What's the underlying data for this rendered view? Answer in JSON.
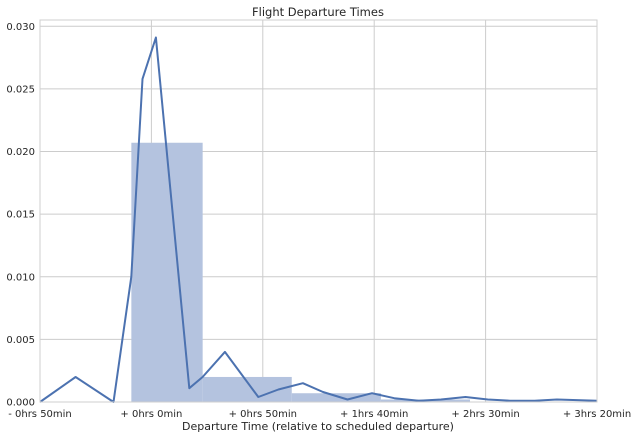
{
  "chart_data": {
    "type": "bar",
    "title": "Flight Departure Times",
    "xlabel": "Departure Time (relative to scheduled departure)",
    "ylabel": "",
    "grid": true,
    "xlim": [
      -50,
      200
    ],
    "ylim": [
      0,
      0.0305
    ],
    "xticks": [
      {
        "value": -50,
        "label": "- 0hrs 50min"
      },
      {
        "value": 0,
        "label": "+ 0hrs  0min"
      },
      {
        "value": 50,
        "label": "+ 0hrs 50min"
      },
      {
        "value": 100,
        "label": "+ 1hrs 40min"
      },
      {
        "value": 150,
        "label": "+ 2hrs 30min"
      },
      {
        "value": 200,
        "label": "+ 3hrs 20min"
      }
    ],
    "yticks": [
      {
        "value": 0,
        "label": "0.000"
      },
      {
        "value": 0.005,
        "label": "0.005"
      },
      {
        "value": 0.01,
        "label": "0.010"
      },
      {
        "value": 0.015,
        "label": "0.015"
      },
      {
        "value": 0.02,
        "label": "0.020"
      },
      {
        "value": 0.025,
        "label": "0.025"
      },
      {
        "value": 0.03,
        "label": "0.030"
      }
    ],
    "histogram": {
      "color": "#b4c3df",
      "bins": [
        {
          "x0": -50,
          "x1": -9,
          "value": 0.0
        },
        {
          "x0": -9,
          "x1": 23,
          "value": 0.0207
        },
        {
          "x0": 23,
          "x1": 63,
          "value": 0.002
        },
        {
          "x0": 63,
          "x1": 103,
          "value": 0.0007
        },
        {
          "x0": 103,
          "x1": 143,
          "value": 0.0002
        },
        {
          "x0": 143,
          "x1": 200,
          "value": 0.0
        }
      ]
    },
    "kde": {
      "color": "#4c72b0",
      "x": [
        -50,
        -34,
        -17,
        -9,
        -4,
        2,
        17,
        23,
        33,
        48,
        57,
        68,
        77,
        88,
        99,
        109,
        120,
        130,
        141,
        151,
        161,
        172,
        182,
        200
      ],
      "y": [
        0.0,
        0.002,
        0.0,
        0.01,
        0.0258,
        0.0291,
        0.0011,
        0.002,
        0.004,
        0.0004,
        0.001,
        0.0015,
        0.0008,
        0.0002,
        0.0007,
        0.0003,
        0.0001,
        0.0002,
        0.0004,
        0.0002,
        0.0001,
        0.0001,
        0.0002,
        0.0001
      ]
    }
  }
}
